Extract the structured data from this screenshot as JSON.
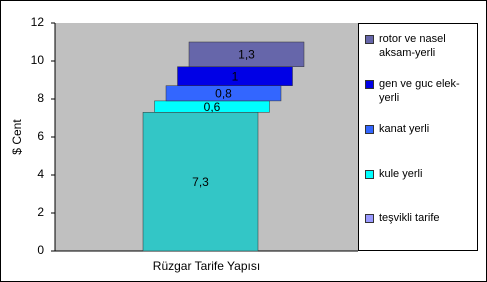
{
  "chart_data": {
    "type": "bar",
    "stacked": true,
    "y_label": "$ Cent",
    "categories": [
      "Rüzgar Tarife Yapısı"
    ],
    "series": [
      {
        "name": "teşvikli tarife",
        "color": "#33c6c6",
        "legend_color": "#9999ff",
        "values": [
          7.3
        ],
        "value_labels": [
          "7,3"
        ]
      },
      {
        "name": "kule yerli",
        "color": "#00ffff",
        "values": [
          0.6
        ],
        "value_labels": [
          "0,6"
        ]
      },
      {
        "name": "kanat yerli",
        "color": "#3366ff",
        "values": [
          0.8
        ],
        "value_labels": [
          "0,8"
        ]
      },
      {
        "name": "gen ve guc elek-yerli",
        "color": "#0000e6",
        "values": [
          1
        ],
        "value_labels": [
          "1"
        ]
      },
      {
        "name": "rotor ve nasel aksam-yerli",
        "color": "#6666aa",
        "values": [
          1.3
        ],
        "value_labels": [
          "1,3"
        ]
      }
    ],
    "ylim": [
      0,
      12
    ],
    "yticks": [
      0,
      2,
      4,
      6,
      8,
      10,
      12
    ],
    "grid": false
  }
}
